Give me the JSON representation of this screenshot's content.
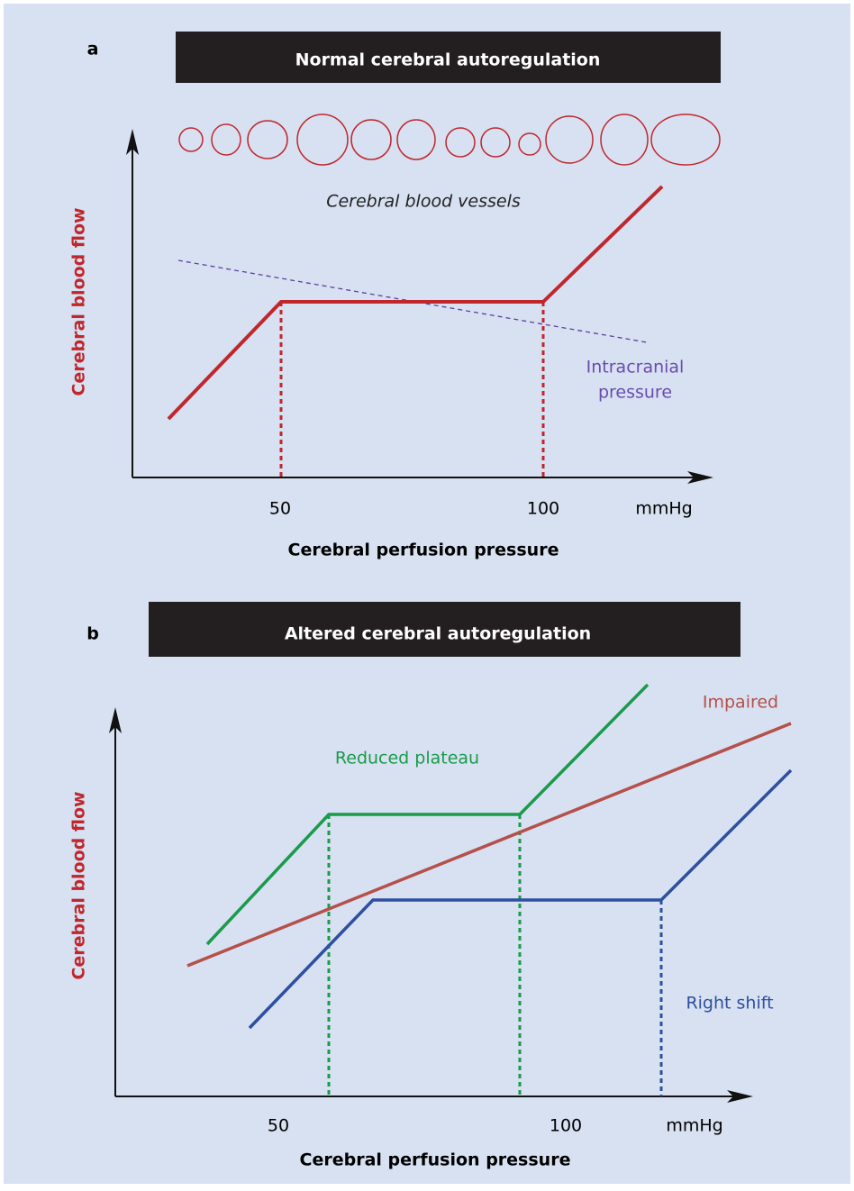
{
  "panels": [
    {
      "label": "a",
      "title": "Normal cerebral autoregulation",
      "vessels_label": "Cerebral blood vessels",
      "y_label": "Cerebral blood flow",
      "x_label": "Cerebral perfusion pressure",
      "x_ticks": [
        "50",
        "100",
        "mmHg"
      ],
      "curve_labels": [
        "Intracranial",
        "pressure"
      ]
    },
    {
      "label": "b",
      "title": "Altered cerebral autoregulation",
      "y_label": "Cerebral blood flow",
      "x_label": "Cerebral perfusion pressure",
      "x_ticks": [
        "50",
        "100",
        "mmHg"
      ],
      "curve_labels": [
        "Reduced plateau",
        "Impaired",
        "Right shift"
      ]
    }
  ]
}
